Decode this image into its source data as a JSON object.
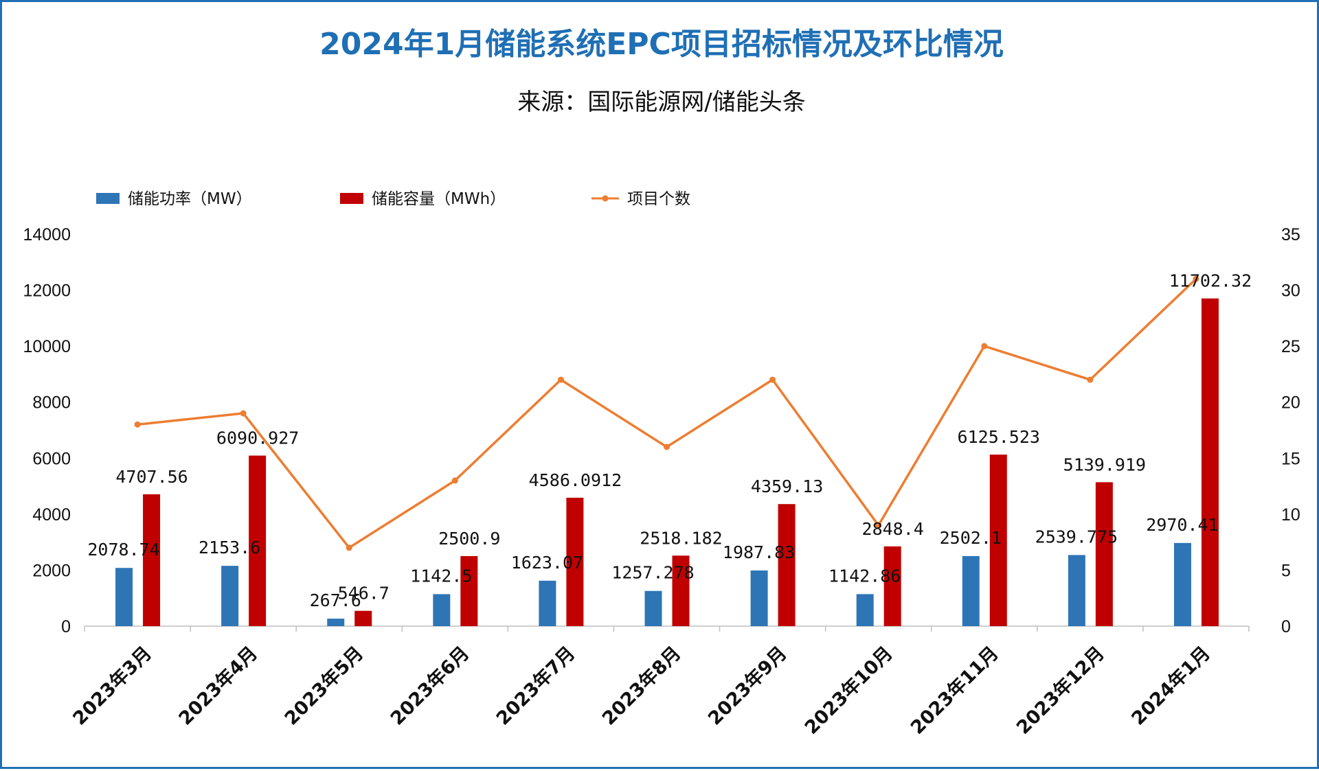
{
  "chart_data": {
    "type": "bar",
    "title": "2024年1月储能系统EPC项目招标情况及环比情况",
    "subtitle": "来源：国际能源网/储能头条",
    "categories": [
      "2023年3月",
      "2023年4月",
      "2023年5月",
      "2023年6月",
      "2023年7月",
      "2023年8月",
      "2023年9月",
      "2023年10月",
      "2023年11月",
      "2023年12月",
      "2024年1月"
    ],
    "series": [
      {
        "name": "储能功率（MW）",
        "kind": "bar",
        "axis": "left",
        "color": "#2e75b6",
        "values": [
          2078.74,
          2153.6,
          267.6,
          1142.5,
          1623.07,
          1257.278,
          1987.83,
          1142.86,
          2502.1,
          2539.775,
          2970.41
        ],
        "labels": [
          "2078.74",
          "2153.6",
          "267.6",
          "1142.5",
          "1623.07",
          "1257.278",
          "1987.83",
          "1142.86",
          "2502.1",
          "2539.775",
          "2970.41"
        ]
      },
      {
        "name": "储能容量（MWh）",
        "kind": "bar",
        "axis": "left",
        "color": "#c00000",
        "values": [
          4707.56,
          6090.927,
          546.7,
          2500.9,
          4586.0912,
          2518.182,
          4359.13,
          2848.4,
          6125.523,
          5139.919,
          11702.32
        ],
        "labels": [
          "4707.56",
          "6090.927",
          "546.7",
          "2500.9",
          "4586.0912",
          "2518.182",
          "4359.13",
          "2848.4",
          "6125.523",
          "5139.919",
          "11702.32"
        ]
      },
      {
        "name": "项目个数",
        "kind": "line",
        "axis": "right",
        "color": "#ed7d31",
        "values": [
          18,
          19,
          7,
          13,
          22,
          16,
          22,
          9,
          25,
          22,
          31
        ]
      }
    ],
    "y_left": {
      "min": 0,
      "max": 14000,
      "ticks": [
        "0",
        "2000",
        "4000",
        "6000",
        "8000",
        "10000",
        "12000",
        "14000"
      ]
    },
    "y_right": {
      "min": 0,
      "max": 35,
      "ticks": [
        "0",
        "5",
        "10",
        "15",
        "20",
        "25",
        "30",
        "35"
      ]
    },
    "legend_position": "top-left",
    "grid": false
  }
}
